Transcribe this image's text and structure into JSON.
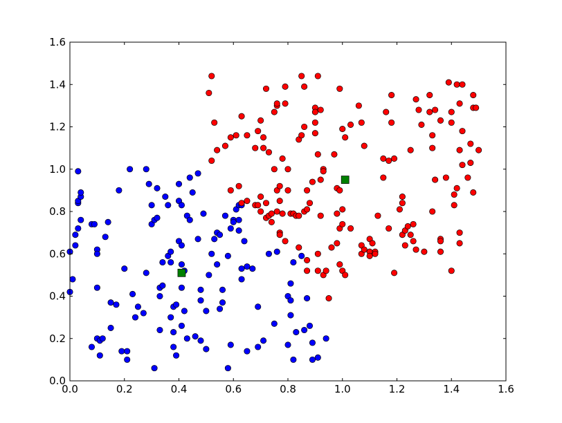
{
  "chart_data": {
    "type": "scatter",
    "title": "",
    "xlabel": "",
    "ylabel": "",
    "xlim": [
      0.0,
      1.6
    ],
    "ylim": [
      0.0,
      1.6
    ],
    "grid": false,
    "legend": "none",
    "xticks": [
      "0.0",
      "0.2",
      "0.4",
      "0.6",
      "0.8",
      "1.0",
      "1.2",
      "1.4",
      "1.6"
    ],
    "yticks": [
      "0.0",
      "0.2",
      "0.4",
      "0.6",
      "0.8",
      "1.0",
      "1.2",
      "1.4",
      "1.6"
    ],
    "series": [
      {
        "marker": "circle",
        "color": "#0000ff",
        "points": [
          [
            0.0,
            0.61
          ],
          [
            0.01,
            0.48
          ],
          [
            0.0,
            0.42
          ],
          [
            0.02,
            0.69
          ],
          [
            0.02,
            0.64
          ],
          [
            0.03,
            0.99
          ],
          [
            0.03,
            0.84
          ],
          [
            0.03,
            0.85
          ],
          [
            0.04,
            0.87
          ],
          [
            0.04,
            0.89
          ],
          [
            0.03,
            0.72
          ],
          [
            0.04,
            0.76
          ],
          [
            0.08,
            0.74
          ],
          [
            0.09,
            0.74
          ],
          [
            0.08,
            0.16
          ],
          [
            0.1,
            0.44
          ],
          [
            0.1,
            0.2
          ],
          [
            0.11,
            0.12
          ],
          [
            0.11,
            0.19
          ],
          [
            0.12,
            0.2
          ],
          [
            0.13,
            0.68
          ],
          [
            0.1,
            0.62
          ],
          [
            0.1,
            0.6
          ],
          [
            0.14,
            0.75
          ],
          [
            0.15,
            0.37
          ],
          [
            0.15,
            0.25
          ],
          [
            0.17,
            0.36
          ],
          [
            0.18,
            0.9
          ],
          [
            0.19,
            0.14
          ],
          [
            0.2,
            0.53
          ],
          [
            0.21,
            0.14
          ],
          [
            0.21,
            0.1
          ],
          [
            0.22,
            1.0
          ],
          [
            0.23,
            0.41
          ],
          [
            0.24,
            0.3
          ],
          [
            0.25,
            0.35
          ],
          [
            0.27,
            0.32
          ],
          [
            0.28,
            1.0
          ],
          [
            0.28,
            0.51
          ],
          [
            0.29,
            0.93
          ],
          [
            0.3,
            0.74
          ],
          [
            0.3,
            0.83
          ],
          [
            0.31,
            0.76
          ],
          [
            0.31,
            0.06
          ],
          [
            0.32,
            0.91
          ],
          [
            0.32,
            0.77
          ],
          [
            0.33,
            0.4
          ],
          [
            0.33,
            0.44
          ],
          [
            0.33,
            0.24
          ],
          [
            0.34,
            0.56
          ],
          [
            0.34,
            0.45
          ],
          [
            0.35,
            0.87
          ],
          [
            0.36,
            0.59
          ],
          [
            0.36,
            0.83
          ],
          [
            0.37,
            0.61
          ],
          [
            0.37,
            0.56
          ],
          [
            0.37,
            0.3
          ],
          [
            0.38,
            0.35
          ],
          [
            0.38,
            0.23
          ],
          [
            0.38,
            0.16
          ],
          [
            0.39,
            0.12
          ],
          [
            0.39,
            0.36
          ],
          [
            0.4,
            0.66
          ],
          [
            0.4,
            0.93
          ],
          [
            0.4,
            0.85
          ],
          [
            0.41,
            0.83
          ],
          [
            0.41,
            0.64
          ],
          [
            0.41,
            0.55
          ],
          [
            0.41,
            0.44
          ],
          [
            0.41,
            0.26
          ],
          [
            0.42,
            0.52
          ],
          [
            0.42,
            0.33
          ],
          [
            0.43,
            0.2
          ],
          [
            0.43,
            0.78
          ],
          [
            0.44,
            0.76
          ],
          [
            0.44,
            0.96
          ],
          [
            0.45,
            0.89
          ],
          [
            0.46,
            0.21
          ],
          [
            0.47,
            0.98
          ],
          [
            0.47,
            0.67
          ],
          [
            0.48,
            0.43
          ],
          [
            0.48,
            0.38
          ],
          [
            0.48,
            0.19
          ],
          [
            0.49,
            0.79
          ],
          [
            0.5,
            0.33
          ],
          [
            0.5,
            0.15
          ],
          [
            0.51,
            0.5
          ],
          [
            0.52,
            0.6
          ],
          [
            0.53,
            0.67
          ],
          [
            0.54,
            0.7
          ],
          [
            0.54,
            0.55
          ],
          [
            0.55,
            0.69
          ],
          [
            0.55,
            0.34
          ],
          [
            0.56,
            0.43
          ],
          [
            0.56,
            0.37
          ],
          [
            0.57,
            0.78
          ],
          [
            0.58,
            0.59
          ],
          [
            0.59,
            0.72
          ],
          [
            0.59,
            0.17
          ],
          [
            0.58,
            0.06
          ],
          [
            0.6,
            0.76
          ],
          [
            0.6,
            0.75
          ],
          [
            0.61,
            0.81
          ],
          [
            0.62,
            0.83
          ],
          [
            0.62,
            0.76
          ],
          [
            0.62,
            0.71
          ],
          [
            0.63,
            0.83
          ],
          [
            0.63,
            0.53
          ],
          [
            0.63,
            0.48
          ],
          [
            0.64,
            0.66
          ],
          [
            0.65,
            0.14
          ],
          [
            0.65,
            0.54
          ],
          [
            0.67,
            0.53
          ],
          [
            0.69,
            0.16
          ],
          [
            0.69,
            0.35
          ],
          [
            0.71,
            0.19
          ],
          [
            0.73,
            0.6
          ],
          [
            0.75,
            0.27
          ],
          [
            0.76,
            0.61
          ],
          [
            0.8,
            0.17
          ],
          [
            0.8,
            0.4
          ],
          [
            0.81,
            0.38
          ],
          [
            0.81,
            0.46
          ],
          [
            0.81,
            0.31
          ],
          [
            0.82,
            0.1
          ],
          [
            0.82,
            0.56
          ],
          [
            0.83,
            0.23
          ],
          [
            0.85,
            0.59
          ],
          [
            0.86,
            0.24
          ],
          [
            0.87,
            0.39
          ],
          [
            0.88,
            0.26
          ],
          [
            0.89,
            0.1
          ],
          [
            0.89,
            0.18
          ],
          [
            0.91,
            0.11
          ],
          [
            0.94,
            0.2
          ]
        ]
      },
      {
        "marker": "circle",
        "color": "#ff0000",
        "points": [
          [
            0.51,
            1.36
          ],
          [
            0.52,
            1.44
          ],
          [
            0.52,
            1.04
          ],
          [
            0.53,
            1.22
          ],
          [
            0.54,
            1.09
          ],
          [
            0.57,
            1.11
          ],
          [
            0.59,
            0.9
          ],
          [
            0.59,
            1.15
          ],
          [
            0.61,
            1.16
          ],
          [
            0.62,
            0.92
          ],
          [
            0.63,
            1.25
          ],
          [
            0.63,
            0.84
          ],
          [
            0.65,
            1.16
          ],
          [
            0.65,
            0.85
          ],
          [
            0.68,
            0.83
          ],
          [
            0.68,
            1.1
          ],
          [
            0.69,
            0.83
          ],
          [
            0.69,
            1.18
          ],
          [
            0.7,
            0.87
          ],
          [
            0.7,
            0.8
          ],
          [
            0.7,
            1.23
          ],
          [
            0.71,
            1.1
          ],
          [
            0.71,
            1.15
          ],
          [
            0.72,
            1.38
          ],
          [
            0.72,
            0.84
          ],
          [
            0.72,
            0.77
          ],
          [
            0.73,
            0.78
          ],
          [
            0.73,
            1.08
          ],
          [
            0.74,
            0.75
          ],
          [
            0.74,
            0.79
          ],
          [
            0.75,
            1.0
          ],
          [
            0.75,
            1.27
          ],
          [
            0.76,
            1.3
          ],
          [
            0.76,
            1.31
          ],
          [
            0.76,
            0.9
          ],
          [
            0.76,
            0.8
          ],
          [
            0.77,
            0.92
          ],
          [
            0.77,
            0.85
          ],
          [
            0.77,
            0.7
          ],
          [
            0.77,
            0.69
          ],
          [
            0.78,
            0.79
          ],
          [
            0.78,
            1.05
          ],
          [
            0.79,
            1.31
          ],
          [
            0.79,
            1.39
          ],
          [
            0.79,
            0.66
          ],
          [
            0.8,
            1.0
          ],
          [
            0.8,
            0.9
          ],
          [
            0.81,
            0.79
          ],
          [
            0.82,
            0.79
          ],
          [
            0.83,
            0.78
          ],
          [
            0.84,
            0.78
          ],
          [
            0.84,
            1.14
          ],
          [
            0.84,
            0.63
          ],
          [
            0.85,
            1.44
          ],
          [
            0.85,
            1.16
          ],
          [
            0.86,
            1.2
          ],
          [
            0.86,
            1.39
          ],
          [
            0.86,
            0.8
          ],
          [
            0.87,
            0.81
          ],
          [
            0.87,
            0.57
          ],
          [
            0.87,
            0.52
          ],
          [
            0.87,
            0.9
          ],
          [
            0.88,
            0.84
          ],
          [
            0.89,
            0.94
          ],
          [
            0.9,
            1.29
          ],
          [
            0.9,
            1.27
          ],
          [
            0.9,
            1.22
          ],
          [
            0.9,
            1.17
          ],
          [
            0.91,
            1.44
          ],
          [
            0.91,
            1.07
          ],
          [
            0.91,
            0.6
          ],
          [
            0.91,
            0.52
          ],
          [
            0.92,
            0.95
          ],
          [
            0.92,
            0.78
          ],
          [
            0.92,
            1.28
          ],
          [
            0.93,
            1.0
          ],
          [
            0.93,
            0.99
          ],
          [
            0.93,
            0.5
          ],
          [
            0.94,
            0.52
          ],
          [
            0.95,
            0.39
          ],
          [
            0.96,
            0.63
          ],
          [
            0.97,
            1.07
          ],
          [
            0.98,
            0.79
          ],
          [
            0.98,
            0.91
          ],
          [
            0.98,
            0.65
          ],
          [
            0.99,
            0.55
          ],
          [
            0.99,
            1.38
          ],
          [
            0.99,
            0.9
          ],
          [
            0.99,
            0.72
          ],
          [
            1.0,
            1.19
          ],
          [
            1.0,
            0.81
          ],
          [
            1.0,
            0.74
          ],
          [
            1.0,
            0.52
          ],
          [
            1.01,
            1.15
          ],
          [
            1.01,
            0.5
          ],
          [
            1.03,
            1.21
          ],
          [
            1.03,
            0.72
          ],
          [
            1.06,
            1.3
          ],
          [
            1.07,
            1.22
          ],
          [
            1.07,
            0.64
          ],
          [
            1.07,
            0.6
          ],
          [
            1.08,
            0.62
          ],
          [
            1.08,
            1.11
          ],
          [
            1.1,
            0.67
          ],
          [
            1.1,
            0.61
          ],
          [
            1.1,
            0.59
          ],
          [
            1.11,
            0.65
          ],
          [
            1.12,
            0.61
          ],
          [
            1.12,
            0.6
          ],
          [
            1.13,
            0.78
          ],
          [
            1.15,
            1.05
          ],
          [
            1.15,
            0.96
          ],
          [
            1.16,
            1.27
          ],
          [
            1.17,
            1.04
          ],
          [
            1.17,
            0.72
          ],
          [
            1.18,
            1.22
          ],
          [
            1.18,
            1.35
          ],
          [
            1.19,
            1.05
          ],
          [
            1.19,
            0.51
          ],
          [
            1.21,
            0.81
          ],
          [
            1.22,
            0.87
          ],
          [
            1.22,
            0.84
          ],
          [
            1.22,
            0.69
          ],
          [
            1.23,
            0.64
          ],
          [
            1.23,
            0.71
          ],
          [
            1.24,
            0.73
          ],
          [
            1.25,
            1.09
          ],
          [
            1.25,
            0.69
          ],
          [
            1.26,
            0.74
          ],
          [
            1.26,
            0.66
          ],
          [
            1.27,
            1.33
          ],
          [
            1.27,
            0.62
          ],
          [
            1.28,
            1.28
          ],
          [
            1.29,
            1.21
          ],
          [
            1.3,
            0.61
          ],
          [
            1.32,
            1.35
          ],
          [
            1.32,
            1.27
          ],
          [
            1.33,
            1.16
          ],
          [
            1.33,
            1.1
          ],
          [
            1.33,
            0.8
          ],
          [
            1.34,
            0.95
          ],
          [
            1.34,
            1.28
          ],
          [
            1.36,
            1.23
          ],
          [
            1.36,
            0.67
          ],
          [
            1.36,
            0.66
          ],
          [
            1.36,
            0.61
          ],
          [
            1.38,
            0.96
          ],
          [
            1.39,
            1.41
          ],
          [
            1.4,
            1.27
          ],
          [
            1.4,
            1.22
          ],
          [
            1.4,
            0.52
          ],
          [
            1.41,
            0.88
          ],
          [
            1.41,
            0.83
          ],
          [
            1.42,
            1.4
          ],
          [
            1.42,
            0.91
          ],
          [
            1.43,
            1.31
          ],
          [
            1.43,
            0.7
          ],
          [
            1.43,
            0.65
          ],
          [
            1.43,
            1.09
          ],
          [
            1.44,
            1.4
          ],
          [
            1.44,
            1.02
          ],
          [
            1.44,
            1.18
          ],
          [
            1.46,
            0.96
          ],
          [
            1.47,
            1.03
          ],
          [
            1.47,
            1.12
          ],
          [
            1.48,
            1.29
          ],
          [
            1.48,
            1.35
          ],
          [
            1.48,
            0.89
          ],
          [
            1.49,
            1.29
          ],
          [
            1.5,
            1.09
          ]
        ]
      },
      {
        "marker": "square",
        "color": "#008000",
        "points": [
          [
            0.41,
            0.51
          ],
          [
            1.01,
            0.95
          ]
        ]
      }
    ]
  }
}
